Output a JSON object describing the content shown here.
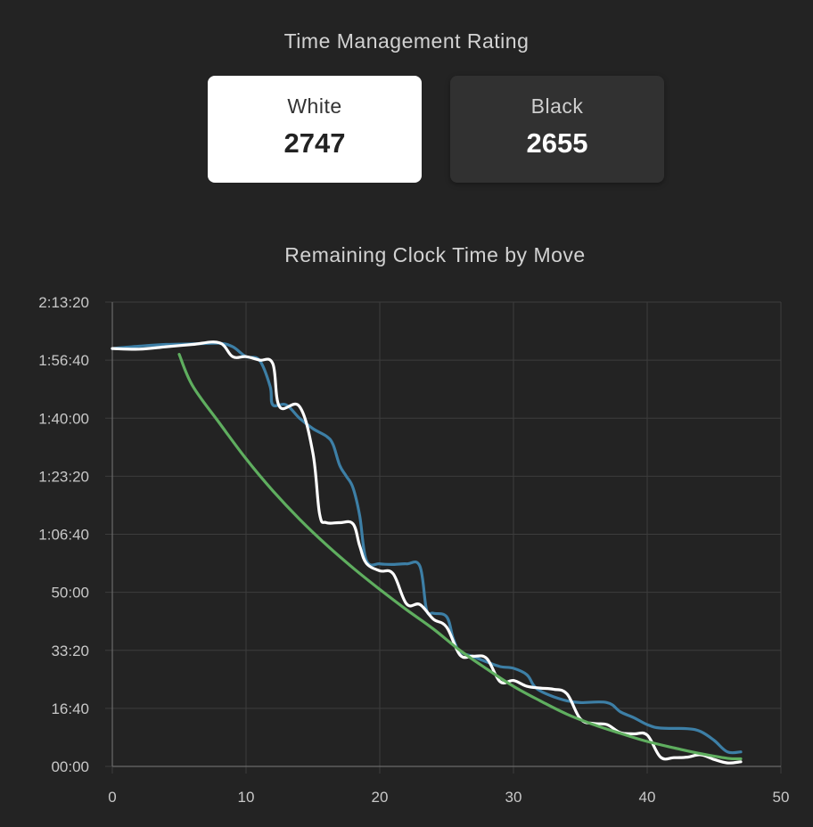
{
  "rating": {
    "title": "Time Management Rating",
    "white": {
      "label": "White",
      "value": "2747"
    },
    "black": {
      "label": "Black",
      "value": "2655"
    }
  },
  "chart_data": {
    "type": "line",
    "title": "Remaining Clock Time by Move",
    "xlabel": "",
    "ylabel": "",
    "xlim": [
      0,
      50
    ],
    "ylim": [
      0,
      8000
    ],
    "x_ticks": [
      0,
      10,
      20,
      30,
      40,
      50
    ],
    "x_tick_labels": [
      "0",
      "10",
      "20",
      "30",
      "40",
      "50"
    ],
    "y_ticks": [
      0,
      1000,
      2000,
      3000,
      4000,
      5000,
      6000,
      7000,
      8000
    ],
    "y_tick_labels": [
      "00:00",
      "16:40",
      "33:20",
      "50:00",
      "1:06:40",
      "1:23:20",
      "1:40:00",
      "1:56:40",
      "2:13:20"
    ],
    "grid": true,
    "y_unit": "seconds",
    "series": [
      {
        "color": "#3d7fa6",
        "points": [
          [
            0,
            7200
          ],
          [
            2,
            7240
          ],
          [
            4,
            7270
          ],
          [
            6,
            7280
          ],
          [
            8,
            7290
          ],
          [
            9,
            7230
          ],
          [
            10,
            7060
          ],
          [
            11,
            7000
          ],
          [
            11.8,
            6550
          ],
          [
            12,
            6230
          ],
          [
            13,
            6230
          ],
          [
            14,
            6000
          ],
          [
            15,
            5820
          ],
          [
            16,
            5690
          ],
          [
            16.5,
            5550
          ],
          [
            17,
            5190
          ],
          [
            17.5,
            5000
          ],
          [
            18,
            4800
          ],
          [
            18.5,
            4320
          ],
          [
            19,
            3550
          ],
          [
            20,
            3490
          ],
          [
            21,
            3480
          ],
          [
            22,
            3490
          ],
          [
            23,
            3450
          ],
          [
            23.5,
            2700
          ],
          [
            24,
            2640
          ],
          [
            25,
            2580
          ],
          [
            25.5,
            2200
          ],
          [
            26,
            1980
          ],
          [
            27,
            1890
          ],
          [
            28,
            1800
          ],
          [
            29,
            1720
          ],
          [
            30,
            1690
          ],
          [
            31,
            1580
          ],
          [
            31.5,
            1400
          ],
          [
            32,
            1300
          ],
          [
            33,
            1200
          ],
          [
            34,
            1130
          ],
          [
            35,
            1100
          ],
          [
            37,
            1100
          ],
          [
            38,
            940
          ],
          [
            39,
            840
          ],
          [
            40,
            720
          ],
          [
            41,
            660
          ],
          [
            43,
            650
          ],
          [
            44,
            600
          ],
          [
            45,
            450
          ],
          [
            46,
            250
          ],
          [
            47,
            250
          ]
        ]
      },
      {
        "color": "#ffffff",
        "points": [
          [
            0,
            7200
          ],
          [
            2,
            7190
          ],
          [
            4,
            7230
          ],
          [
            6,
            7270
          ],
          [
            8,
            7300
          ],
          [
            9,
            7060
          ],
          [
            10,
            7060
          ],
          [
            11,
            7000
          ],
          [
            12,
            6940
          ],
          [
            12.5,
            6200
          ],
          [
            14,
            6200
          ],
          [
            15,
            5400
          ],
          [
            15.5,
            4350
          ],
          [
            16,
            4200
          ],
          [
            17,
            4200
          ],
          [
            18,
            4180
          ],
          [
            18.5,
            3800
          ],
          [
            19,
            3500
          ],
          [
            20,
            3370
          ],
          [
            21,
            3320
          ],
          [
            22,
            2800
          ],
          [
            23,
            2790
          ],
          [
            24,
            2540
          ],
          [
            25,
            2400
          ],
          [
            26,
            1920
          ],
          [
            27,
            1900
          ],
          [
            28,
            1860
          ],
          [
            29,
            1460
          ],
          [
            30,
            1480
          ],
          [
            31,
            1380
          ],
          [
            32,
            1350
          ],
          [
            33,
            1330
          ],
          [
            34,
            1250
          ],
          [
            35,
            820
          ],
          [
            36,
            740
          ],
          [
            37,
            720
          ],
          [
            38,
            580
          ],
          [
            39,
            560
          ],
          [
            40,
            540
          ],
          [
            41,
            160
          ],
          [
            42,
            150
          ],
          [
            43,
            160
          ],
          [
            44,
            200
          ],
          [
            45,
            120
          ],
          [
            46,
            60
          ],
          [
            47,
            80
          ]
        ]
      },
      {
        "color": "#5fae5f",
        "points": [
          [
            5,
            7100
          ],
          [
            6,
            6560
          ],
          [
            8,
            5920
          ],
          [
            10,
            5300
          ],
          [
            12,
            4750
          ],
          [
            14,
            4260
          ],
          [
            16,
            3820
          ],
          [
            18,
            3420
          ],
          [
            20,
            3050
          ],
          [
            22,
            2700
          ],
          [
            24,
            2370
          ],
          [
            26,
            2000
          ],
          [
            28,
            1680
          ],
          [
            30,
            1380
          ],
          [
            32,
            1130
          ],
          [
            34,
            900
          ],
          [
            36,
            720
          ],
          [
            38,
            570
          ],
          [
            40,
            430
          ],
          [
            42,
            320
          ],
          [
            44,
            220
          ],
          [
            46,
            140
          ],
          [
            47,
            130
          ]
        ]
      }
    ]
  }
}
